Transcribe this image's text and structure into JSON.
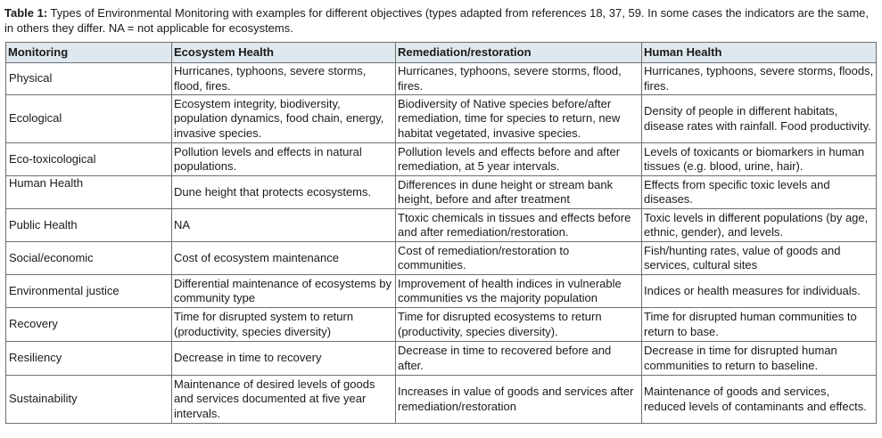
{
  "caption": {
    "label": "Table 1:",
    "text": " Types of Environmental Monitoring with examples for different objectives (types adapted from references 18, 37, 59. In some cases the indicators are the same, in others they differ. NA = not applicable for ecosystems."
  },
  "table": {
    "headers": [
      "Monitoring",
      "Ecosystem Health",
      "Remediation/restoration",
      "Human Health"
    ],
    "rows": [
      [
        "Physical",
        "Hurricanes, typhoons, severe storms, flood, fires.",
        "Hurricanes, typhoons, severe storms, flood, fires.",
        "Hurricanes, typhoons, severe storms, floods, fires."
      ],
      [
        "Ecological",
        "Ecosystem integrity, biodiversity, population dynamics, food chain, energy, invasive species.",
        "Biodiversity of Native species before/after remediation, time for species to return, new habitat vegetated, invasive species.",
        "Density of people in different habitats, disease rates with rainfall. Food productivity."
      ],
      [
        "Eco-toxicological",
        "Pollution levels and effects in natural populations.",
        "Pollution levels and effects before and after remediation, at 5 year intervals.",
        "Levels of toxicants or biomarkers in human tissues (e.g. blood, urine, hair)."
      ],
      [
        "Human Health",
        "Dune height that protects ecosystems.",
        "Differences in dune height or stream bank height, before and after treatment",
        "Effects from specific toxic levels and diseases."
      ],
      [
        "Public Health",
        "NA",
        "Ttoxic chemicals in tissues and effects before and after remediation/restoration.",
        "Toxic levels in different populations (by age, ethnic, gender), and levels."
      ],
      [
        "Social/economic",
        "Cost of ecosystem maintenance",
        "Cost of remediation/restoration to communities.",
        "Fish/hunting rates, value of goods and services, cultural sites"
      ],
      [
        "Environmental justice",
        "Differential maintenance of ecosystems by community type",
        "Improvement of health indices in vulnerable communities vs the majority population",
        "Indices or health measures for individuals."
      ],
      [
        "Recovery",
        "Time for disrupted system to return (productivity, species diversity)",
        "Time for disrupted ecosystems to return (productivity, species diversity).",
        "Time for disrupted human communities to return to base."
      ],
      [
        "Resiliency",
        "Decrease in time to recovery",
        "Decrease in time to recovered before and after.",
        "Decrease in time for disrupted human communities to return to baseline."
      ],
      [
        "Sustainability",
        "Maintenance of desired levels of goods and services documented at five year intervals.",
        "Increases in value of goods and services after remediation/restoration",
        "Maintenance of goods and services, reduced levels of contaminants and effects."
      ]
    ]
  }
}
